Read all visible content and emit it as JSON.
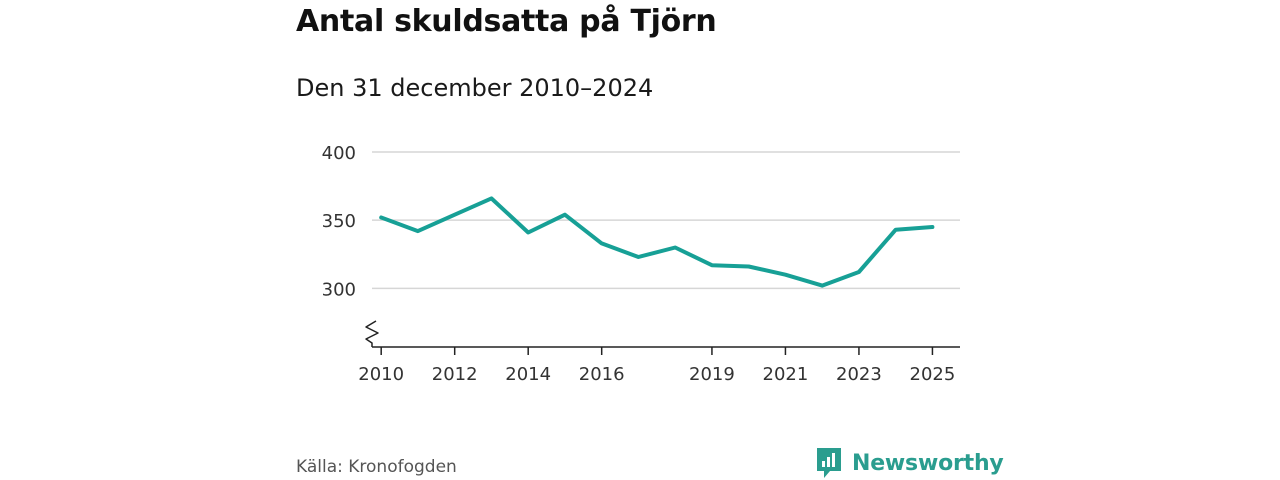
{
  "header": {
    "title": "Antal skuldsatta på Tjörn",
    "subtitle": "Den 31 december 2010–2024"
  },
  "footer": {
    "source": "Källa: Kronofogden",
    "brand": "Newsworthy"
  },
  "colors": {
    "line": "#17a096",
    "grid": "#d6d6d6",
    "brand": "#2a9d8f"
  },
  "chart_data": {
    "type": "line",
    "title": "Antal skuldsatta på Tjörn",
    "subtitle": "Den 31 december 2010–2024",
    "xlabel": "",
    "ylabel": "",
    "ylim": [
      257,
      400
    ],
    "xlim": [
      2009.75,
      2025.75
    ],
    "y_ticks": [
      300,
      350,
      400
    ],
    "x_ticks": [
      "2010",
      "2012",
      "2014",
      "2016",
      "2019",
      "2021",
      "2023",
      "2025"
    ],
    "y_axis_break": true,
    "grid": true,
    "series": [
      {
        "name": "Antal skuldsatta",
        "x": [
          2010,
          2011,
          2012,
          2013,
          2014,
          2015,
          2016,
          2017,
          2018,
          2019,
          2020,
          2021,
          2022,
          2023,
          2024,
          2025
        ],
        "values": [
          352,
          342,
          354,
          366,
          341,
          354,
          333,
          323,
          330,
          317,
          316,
          310,
          302,
          312,
          343,
          345
        ]
      }
    ]
  }
}
